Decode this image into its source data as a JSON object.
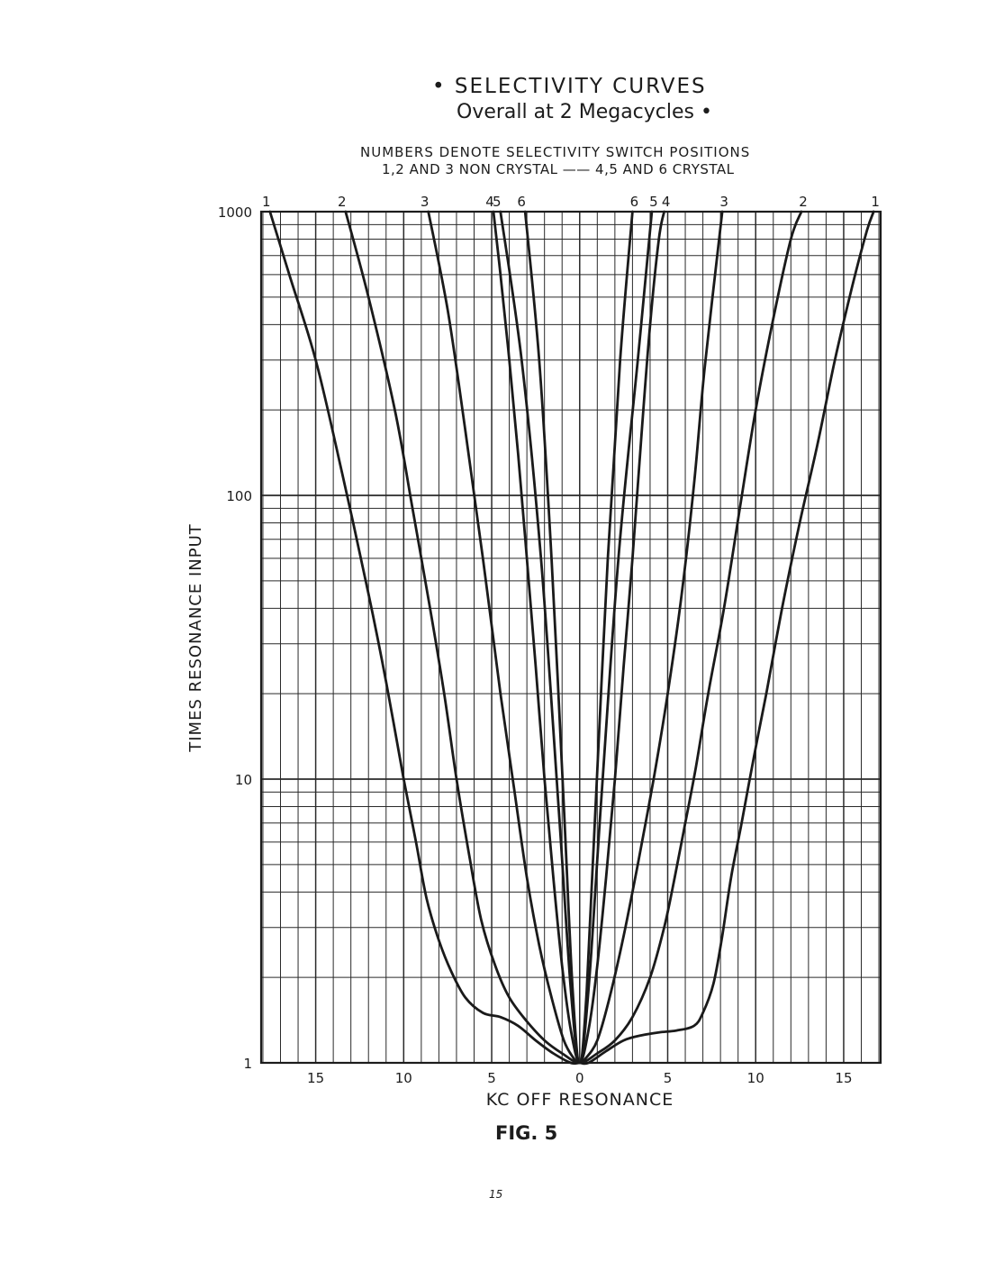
{
  "page": {
    "title": "• SELECTIVITY  CURVES",
    "subtitle": "Overall at 2 Megacycles •",
    "note_line1": "NUMBERS DENOTE SELECTIVITY SWITCH POSITIONS",
    "note_line2": "1,2 AND 3 NON CRYSTAL —— 4,5 AND 6 CRYSTAL",
    "figure_label": "FIG. 5",
    "page_number": "15"
  },
  "chart_data": {
    "type": "line",
    "title": "SELECTIVITY CURVES Overall at 2 Megacycles",
    "xlabel": "KC  OFF  RESONANCE",
    "ylabel": "TIMES  RESONANCE  INPUT",
    "y_scale": "log",
    "xlim": [
      -18.1,
      17.1
    ],
    "ylim": [
      1,
      1000
    ],
    "x_tick_labels": [
      "15",
      "10",
      "5",
      "0",
      "5",
      "10",
      "15"
    ],
    "x_tick_values": [
      -15,
      -10,
      -5,
      0,
      5,
      10,
      15
    ],
    "y_tick_labels": [
      "1000",
      "100",
      "10",
      "1"
    ],
    "y_tick_values": [
      1000,
      100,
      10,
      1
    ],
    "grid": true,
    "series": [
      {
        "name": "1",
        "x": [
          -17.6,
          -16.5,
          -15.0,
          -13.5,
          -12.0,
          -11.0,
          -10.0,
          -9.3,
          -8.7,
          -8.0,
          -7.3,
          -6.5,
          -5.5,
          -4.5,
          -3.5,
          -2.5,
          -1.5,
          -0.5,
          0.0,
          0.5,
          1.5,
          2.5,
          3.5,
          4.5,
          5.5,
          6.5,
          7.0,
          7.6,
          8.1,
          8.6,
          9.2,
          9.9,
          10.6,
          11.5,
          12.5,
          13.5,
          14.5,
          15.5,
          16.3,
          16.7
        ],
        "y": [
          1000,
          600,
          300,
          120,
          45,
          22,
          10,
          6,
          3.8,
          2.7,
          2.1,
          1.7,
          1.5,
          1.45,
          1.35,
          1.2,
          1.08,
          1.0,
          1.0,
          1.0,
          1.1,
          1.2,
          1.25,
          1.28,
          1.3,
          1.35,
          1.5,
          1.9,
          2.8,
          4.5,
          7,
          12,
          20,
          40,
          80,
          150,
          300,
          550,
          850,
          1000
        ]
      },
      {
        "name": "2",
        "x": [
          -13.3,
          -12.0,
          -10.5,
          -9.5,
          -8.5,
          -7.7,
          -7.0,
          -6.3,
          -5.6,
          -4.8,
          -4.0,
          -3.0,
          -2.0,
          -1.0,
          0.0,
          1.0,
          2.0,
          3.0,
          4.0,
          4.8,
          5.4,
          6.0,
          6.6,
          7.3,
          8.2,
          9.1,
          10.0,
          11.0,
          12.0,
          12.6
        ],
        "y": [
          1000,
          500,
          200,
          90,
          40,
          20,
          10,
          5.5,
          3.2,
          2.2,
          1.7,
          1.4,
          1.2,
          1.08,
          1.0,
          1.08,
          1.2,
          1.45,
          2.0,
          3.0,
          4.5,
          7,
          11,
          20,
          40,
          90,
          200,
          420,
          800,
          1000
        ]
      },
      {
        "name": "3",
        "x": [
          -8.6,
          -7.5,
          -6.5,
          -5.5,
          -4.5,
          -3.7,
          -3.0,
          -2.3,
          -1.6,
          -0.9,
          -0.3,
          0.0,
          0.3,
          1.0,
          1.7,
          2.5,
          3.3,
          4.2,
          5.0,
          5.8,
          6.5,
          7.1,
          8.1
        ],
        "y": [
          1000,
          450,
          170,
          60,
          20,
          9,
          4.5,
          2.6,
          1.7,
          1.2,
          1.03,
          1.0,
          1.03,
          1.2,
          1.7,
          2.8,
          5,
          10,
          20,
          45,
          110,
          280,
          1000
        ]
      },
      {
        "name": "4",
        "x": [
          -4.9,
          -4.5,
          -4.0,
          -3.5,
          -3.0,
          -2.5,
          -2.0,
          -1.5,
          -1.0,
          -0.5,
          0.0,
          0.5,
          1.0,
          1.5,
          2.0,
          2.5,
          3.0,
          3.5,
          4.0,
          4.5,
          4.8
        ],
        "y": [
          1000,
          600,
          300,
          140,
          60,
          25,
          10,
          4.5,
          2.2,
          1.3,
          1.0,
          1.3,
          2.2,
          4.5,
          10,
          25,
          60,
          160,
          400,
          800,
          1000
        ]
      },
      {
        "name": "5",
        "x": [
          -4.5,
          -3.3,
          -2.2,
          -1.2,
          -0.5,
          0.0,
          0.5,
          1.2,
          2.2,
          3.3,
          4.1
        ],
        "y": [
          1000,
          300,
          60,
          8,
          1.8,
          1.0,
          1.8,
          8,
          60,
          300,
          1000
        ]
      },
      {
        "name": "6",
        "x": [
          -3.1,
          -2.3,
          -1.6,
          -0.9,
          -0.4,
          0.0,
          0.4,
          0.9,
          1.6,
          2.3,
          3.0
        ],
        "y": [
          1000,
          300,
          60,
          8,
          1.8,
          1.0,
          1.8,
          8,
          60,
          300,
          1000
        ]
      }
    ]
  }
}
